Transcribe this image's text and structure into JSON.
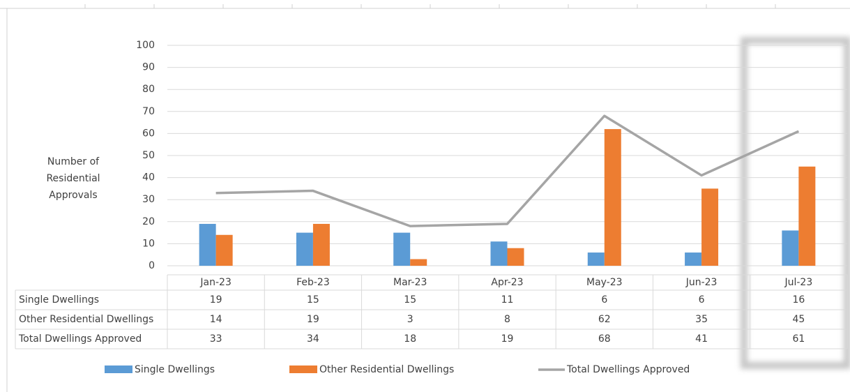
{
  "chart_data": {
    "type": "bar-line",
    "y_axis_label": "Number of Residential Approvals",
    "categories": [
      "Jan-23",
      "Feb-23",
      "Mar-23",
      "Apr-23",
      "May-23",
      "Jun-23",
      "Jul-23"
    ],
    "series": [
      {
        "name": "Single Dwellings",
        "type": "bar",
        "color": "#5b9bd5",
        "values": [
          19,
          15,
          15,
          11,
          6,
          6,
          16
        ]
      },
      {
        "name": "Other Residential Dwellings",
        "type": "bar",
        "color": "#ed7d31",
        "values": [
          14,
          19,
          3,
          8,
          62,
          35,
          45
        ]
      },
      {
        "name": "Total Dwellings Approved",
        "type": "line",
        "color": "#a5a5a5",
        "values": [
          33,
          34,
          18,
          19,
          68,
          41,
          61
        ]
      }
    ],
    "ylim": [
      0,
      100
    ],
    "yticks": [
      0,
      10,
      20,
      30,
      40,
      50,
      60,
      70,
      80,
      90,
      100
    ],
    "grid": true,
    "legend": "bottom"
  }
}
